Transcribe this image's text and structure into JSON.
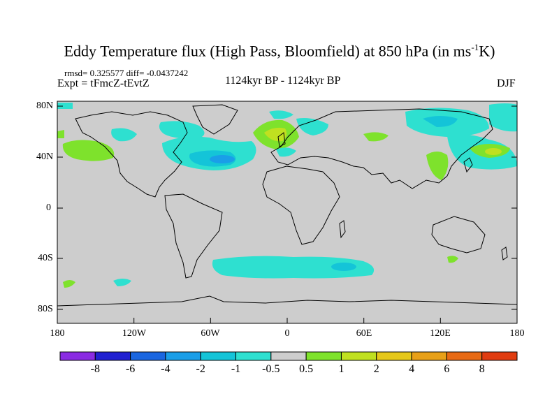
{
  "title_main": "Eddy Temperature flux (High Pass, Bloomfield) at 850 hPa (in ms",
  "title_sup": "-1",
  "title_end": "K)",
  "stats_line": "rmsd= 0.325577 diff= -0.0437242",
  "expt_line": "Expt = tFmcZ-tEvtZ",
  "period_line": "1124kyr BP - 1124kyr BP",
  "season": "DJF",
  "lat_labels": [
    "80N",
    "40N",
    "0",
    "40S",
    "80S"
  ],
  "lon_labels": [
    "180",
    "120W",
    "60W",
    "0",
    "60E",
    "120E",
    "180"
  ],
  "colorbar": {
    "colors": [
      "#8a2be2",
      "#2020d0",
      "#1a66e0",
      "#1a9ee8",
      "#14c4d8",
      "#2ee0d0",
      "#cdcdcd",
      "#7ee22c",
      "#c0e020",
      "#e6c81a",
      "#e8a018",
      "#e86a14",
      "#e03c10"
    ],
    "labels": [
      "-8",
      "-6",
      "-4",
      "-2",
      "-1",
      "-0.5",
      "0.5",
      "1",
      "2",
      "4",
      "6",
      "8"
    ]
  },
  "map_colors": {
    "ocean": "#cdcdcd",
    "coast": "#000000",
    "neg_light": "#2ee0d0",
    "neg_mid": "#14c4d8",
    "neg_dark": "#1a9ee8",
    "pos_light": "#7ee22c",
    "pos_mid": "#c0e020",
    "pos_strong": "#e6c81a"
  }
}
